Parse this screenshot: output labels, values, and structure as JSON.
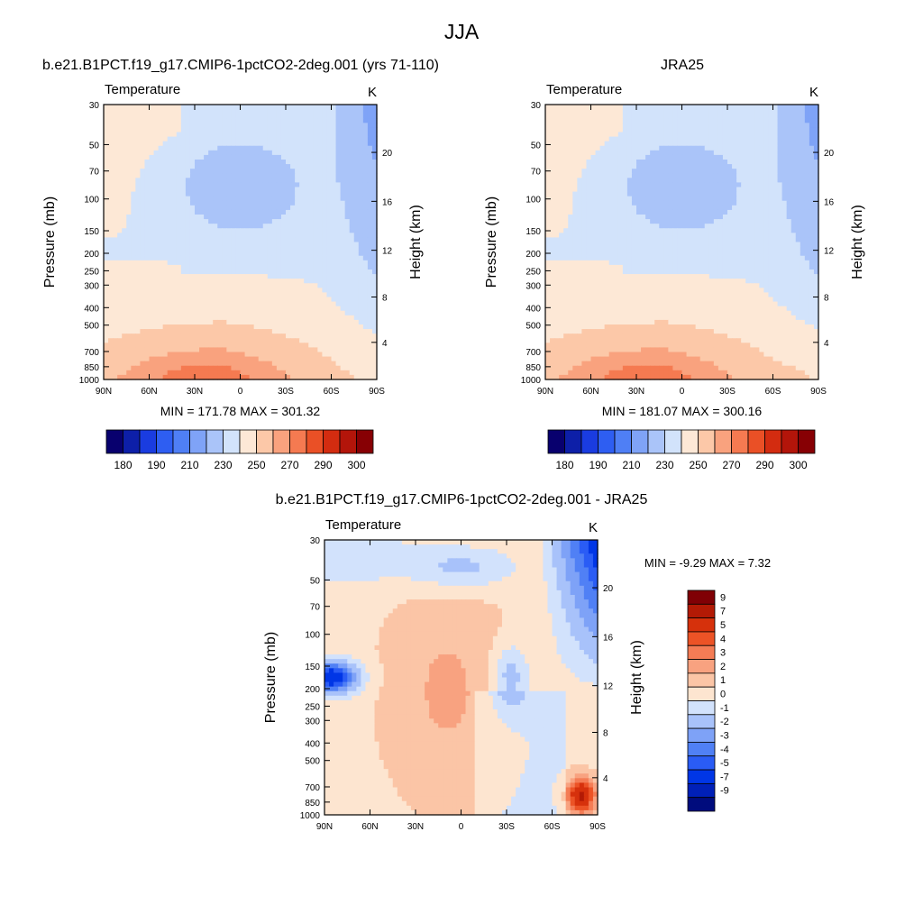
{
  "figure": {
    "title": "JJA"
  },
  "palettes": {
    "abs": [
      "#08006e",
      "#0d1fa8",
      "#1a3ce0",
      "#2e5ef2",
      "#4f7ff5",
      "#7fa3f7",
      "#aac4f9",
      "#d2e3fb",
      "#fde8d6",
      "#fcc8a8",
      "#f9a27e",
      "#f57a51",
      "#ea5026",
      "#d32c10",
      "#b3150a",
      "#870004"
    ],
    "diff": [
      "#000c7d",
      "#0020b8",
      "#0036e6",
      "#2a5cf5",
      "#5080f5",
      "#7ea2f7",
      "#a8c2fa",
      "#d2e2fc",
      "#fde5d0",
      "#fbc5a6",
      "#f8a280",
      "#f47c55",
      "#ec5326",
      "#d6310c",
      "#b31a05",
      "#800005"
    ]
  },
  "chart_data": [
    {
      "type": "heatmap",
      "panel": "model",
      "title": "b.e21.B1PCT.f19_g17.CMIP6-1pctCO2-2deg.001 (yrs 71-110)",
      "left_string": "Temperature",
      "right_string": "K",
      "ylabel": "Pressure (mb)",
      "ylabel_right": "Height (km)",
      "xticks": [
        "90N",
        "60N",
        "30N",
        "0",
        "30S",
        "60S",
        "90S"
      ],
      "yticks": [
        "30",
        "50",
        "70",
        "100",
        "150",
        "200",
        "250",
        "300",
        "400",
        "500",
        "700",
        "850",
        "1000"
      ],
      "yticks_right": [
        "20",
        "16",
        "12",
        "8",
        "4"
      ],
      "stats": "MIN = 171.78  MAX = 301.32",
      "colorbar": {
        "orientation": "horizontal",
        "labels": [
          "180",
          "190",
          "210",
          "230",
          "250",
          "270",
          "290",
          "300"
        ]
      }
    },
    {
      "type": "heatmap",
      "panel": "obs",
      "title": "JRA25",
      "left_string": "Temperature",
      "right_string": "K",
      "ylabel": "Pressure (mb)",
      "ylabel_right": "Height (km)",
      "xticks": [
        "90N",
        "60N",
        "30N",
        "0",
        "30S",
        "60S",
        "90S"
      ],
      "yticks": [
        "30",
        "50",
        "70",
        "100",
        "150",
        "200",
        "250",
        "300",
        "400",
        "500",
        "700",
        "850",
        "1000"
      ],
      "yticks_right": [
        "20",
        "16",
        "12",
        "8",
        "4"
      ],
      "stats": "MIN = 181.07  MAX = 300.16",
      "colorbar": {
        "orientation": "horizontal",
        "labels": [
          "180",
          "190",
          "210",
          "230",
          "250",
          "270",
          "290",
          "300"
        ]
      }
    },
    {
      "type": "heatmap",
      "panel": "difference",
      "title": "b.e21.B1PCT.f19_g17.CMIP6-1pctCO2-2deg.001 - JRA25",
      "left_string": "Temperature",
      "right_string": "K",
      "ylabel": "Pressure (mb)",
      "ylabel_right": "Height (km)",
      "xticks": [
        "90N",
        "60N",
        "30N",
        "0",
        "30S",
        "60S",
        "90S"
      ],
      "yticks": [
        "30",
        "50",
        "70",
        "100",
        "150",
        "200",
        "250",
        "300",
        "400",
        "500",
        "700",
        "850",
        "1000"
      ],
      "yticks_right": [
        "20",
        "16",
        "12",
        "8",
        "4"
      ],
      "stats": "MIN =  -9.29  MAX =   7.32",
      "colorbar": {
        "orientation": "vertical",
        "labels": [
          "9",
          "7",
          "5",
          "4",
          "3",
          "2",
          "1",
          "0",
          "-1",
          "-2",
          "-3",
          "-4",
          "-5",
          "-7",
          "-9"
        ]
      }
    }
  ]
}
